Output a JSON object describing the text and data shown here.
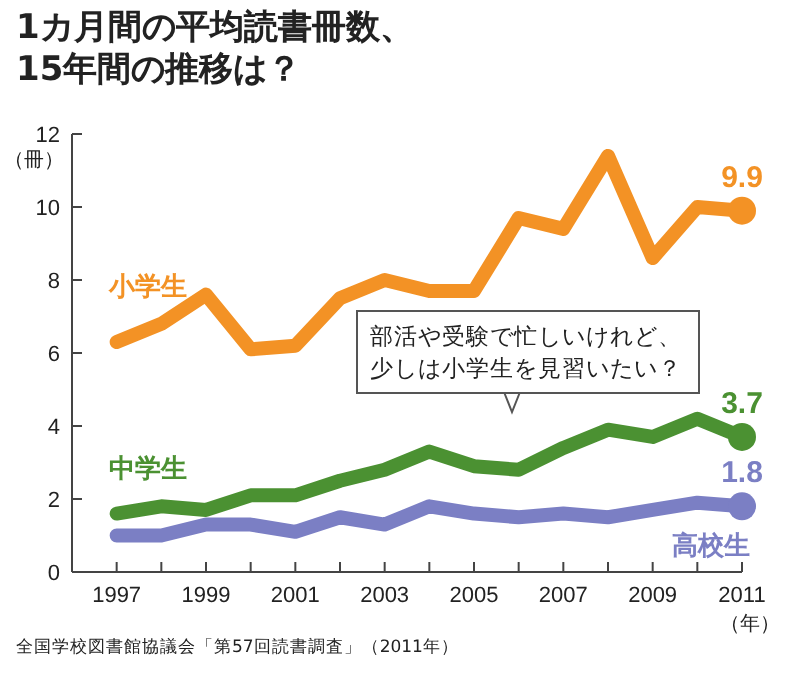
{
  "chart_data": {
    "type": "line",
    "title": "1カ月間の平均読書冊数、15年間の推移は？",
    "xlabel": "（年）",
    "ylabel": "（冊）",
    "x": [
      1997,
      1998,
      1999,
      2000,
      2001,
      2002,
      2003,
      2004,
      2005,
      2006,
      2007,
      2008,
      2009,
      2010,
      2011
    ],
    "series": [
      {
        "name": "小学生",
        "color": "#f39225",
        "values": [
          6.3,
          6.8,
          7.6,
          6.1,
          6.2,
          7.5,
          8.0,
          7.7,
          7.7,
          9.7,
          9.4,
          11.4,
          8.6,
          10.0,
          9.9
        ],
        "value_labels": [
          null,
          null,
          null,
          null,
          null,
          null,
          null,
          null,
          null,
          null,
          null,
          null,
          null,
          null,
          "9.9"
        ]
      },
      {
        "name": "中学生",
        "color": "#4b9132",
        "values": [
          1.6,
          1.8,
          1.7,
          2.1,
          2.1,
          2.5,
          2.8,
          3.3,
          2.9,
          2.8,
          3.4,
          3.9,
          3.7,
          4.2,
          3.7
        ],
        "value_labels": [
          null,
          null,
          null,
          null,
          null,
          null,
          null,
          null,
          null,
          null,
          null,
          null,
          null,
          null,
          "3.7"
        ]
      },
      {
        "name": "高校生",
        "color": "#7b7fc4",
        "values": [
          1.0,
          1.0,
          1.3,
          1.3,
          1.1,
          1.5,
          1.3,
          1.8,
          1.6,
          1.5,
          1.6,
          1.5,
          1.7,
          1.9,
          1.8
        ],
        "value_labels": [
          null,
          null,
          null,
          null,
          null,
          null,
          null,
          null,
          null,
          null,
          null,
          null,
          null,
          null,
          "1.8"
        ]
      }
    ],
    "xlim": [
      1996,
      2011
    ],
    "ylim": [
      0,
      12
    ],
    "xticks": [
      1997,
      {
        "value": 1998,
        "label": null
      },
      1999,
      {
        "value": 2000,
        "label": null
      },
      2001,
      {
        "value": 2002,
        "label": null
      },
      2003,
      {
        "value": 2004,
        "label": null
      },
      2005,
      {
        "value": 2006,
        "label": null
      },
      2007,
      {
        "value": 2008,
        "label": null
      },
      2009,
      {
        "value": 2010,
        "label": null
      },
      2011
    ],
    "yticks": [
      0,
      2,
      4,
      6,
      8,
      10,
      12
    ],
    "line_style": "solid",
    "grid": false,
    "annotations": [
      "部活や受験で忙しいけれど、少しは小学生を見習いたい？",
      "全国学校図書館協議会「第57回読書調査」（2011年）"
    ]
  }
}
